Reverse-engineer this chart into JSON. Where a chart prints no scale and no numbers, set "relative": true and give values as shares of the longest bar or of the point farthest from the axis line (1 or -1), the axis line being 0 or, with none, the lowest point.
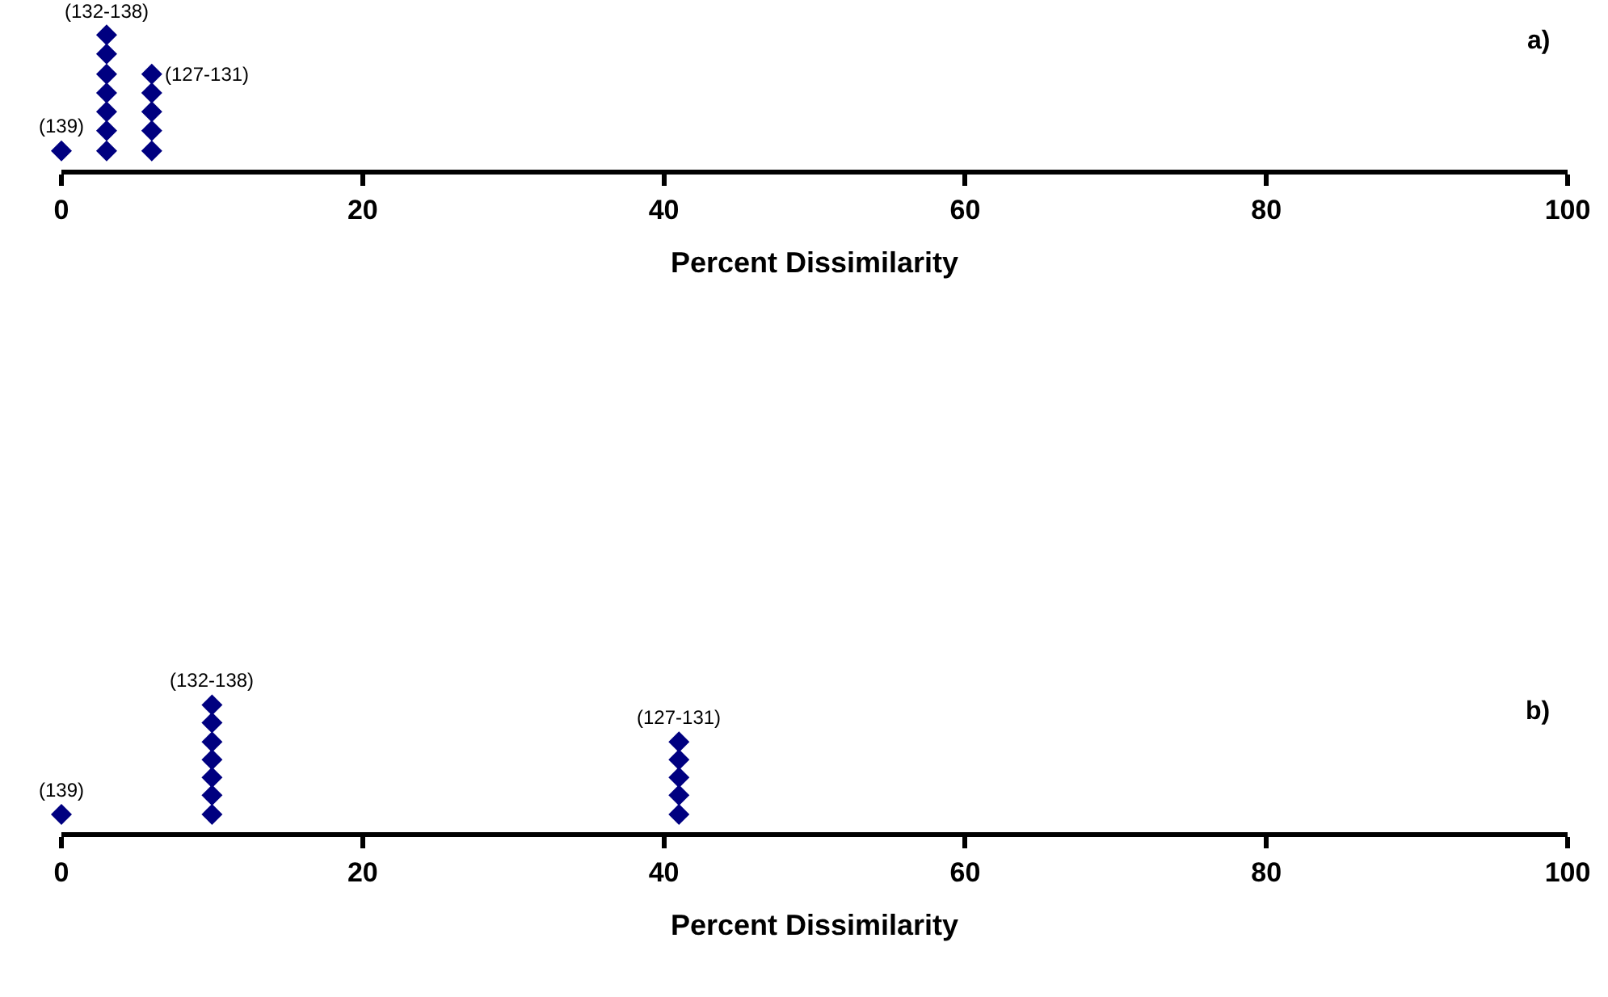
{
  "chart_data": [
    {
      "type": "scatter",
      "title": "a)",
      "xlabel": "Percent Dissimilarity",
      "relative": true,
      "marker": "diamond",
      "xlim": [
        0,
        100
      ],
      "xticks": [
        0,
        20,
        40,
        60,
        80,
        100
      ],
      "series": [
        {
          "color": "#000080",
          "x": [
            0,
            3,
            3,
            3,
            3,
            3,
            3,
            3,
            6,
            6,
            6,
            6,
            6
          ],
          "values": [
            0.14,
            0.14,
            0.29,
            0.43,
            0.57,
            0.71,
            0.86,
            1,
            0.14,
            0.29,
            0.43,
            0.57,
            0.71
          ]
        }
      ],
      "annotations": [
        {
          "text": "(139)",
          "x": 0,
          "y": 0.14
        },
        {
          "text": "(132-138)",
          "x": 3,
          "y": 1
        },
        {
          "text": "(127-131)",
          "x": 6,
          "y": 0.71
        }
      ]
    },
    {
      "type": "scatter",
      "title": "b)",
      "xlabel": "Percent Dissimilarity",
      "relative": true,
      "marker": "diamond",
      "xlim": [
        0,
        100
      ],
      "xticks": [
        0,
        20,
        40,
        60,
        80,
        100
      ],
      "series": [
        {
          "color": "#000080",
          "x": [
            0,
            10,
            10,
            10,
            10,
            10,
            10,
            10,
            41,
            41,
            41,
            41,
            41
          ],
          "values": [
            0.14,
            0.14,
            0.29,
            0.43,
            0.57,
            0.71,
            0.86,
            1,
            0.14,
            0.29,
            0.43,
            0.57,
            0.71
          ]
        }
      ],
      "annotations": [
        {
          "text": "(139)",
          "x": 0,
          "y": 0.14
        },
        {
          "text": "(132-138)",
          "x": 10,
          "y": 1
        },
        {
          "text": "(127-131)",
          "x": 41,
          "y": 0.71
        }
      ]
    }
  ]
}
